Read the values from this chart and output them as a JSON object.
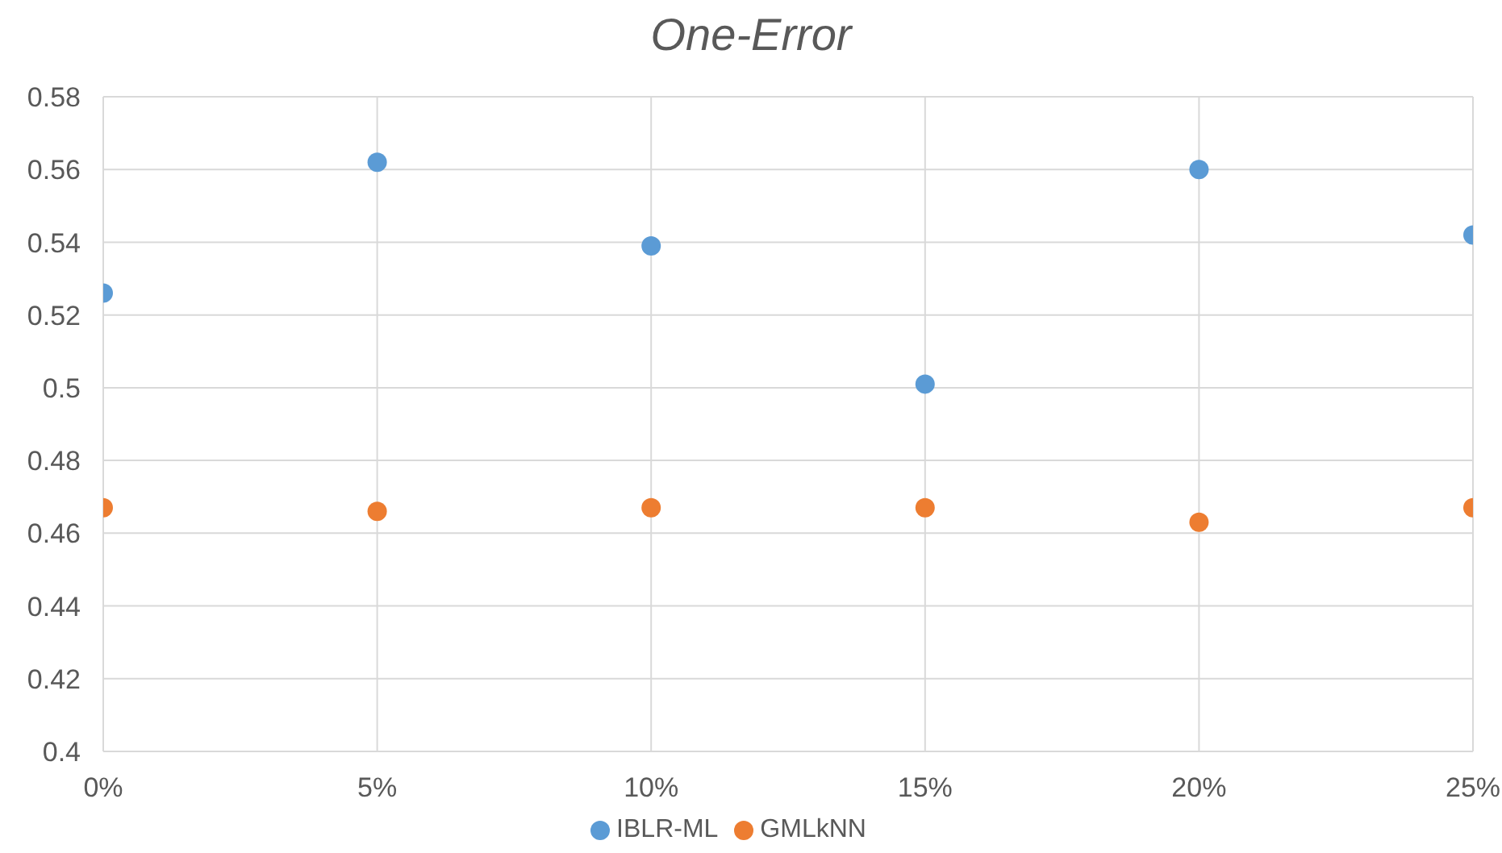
{
  "chart_data": {
    "type": "scatter",
    "title": "One-Error",
    "x": [
      0,
      5,
      10,
      15,
      20,
      25
    ],
    "series": [
      {
        "name": "IBLR-ML",
        "color": "#5b9bd5",
        "values": [
          0.526,
          0.562,
          0.539,
          0.501,
          0.56,
          0.542
        ]
      },
      {
        "name": "GMLkNN",
        "color": "#ed7d31",
        "values": [
          0.467,
          0.466,
          0.467,
          0.467,
          0.463,
          0.467
        ]
      }
    ],
    "xlim": [
      0,
      25
    ],
    "xticks": [
      {
        "value": 0,
        "label": "0%"
      },
      {
        "value": 5,
        "label": "5%"
      },
      {
        "value": 10,
        "label": "10%"
      },
      {
        "value": 15,
        "label": "15%"
      },
      {
        "value": 20,
        "label": "20%"
      },
      {
        "value": 25,
        "label": "25%"
      }
    ],
    "ylim": [
      0.4,
      0.58
    ],
    "yticks": [
      0.4,
      0.42,
      0.44,
      0.46,
      0.48,
      0.5,
      0.52,
      0.54,
      0.56,
      0.58
    ],
    "grid": true,
    "legend": "bottom",
    "marker": "circle"
  }
}
